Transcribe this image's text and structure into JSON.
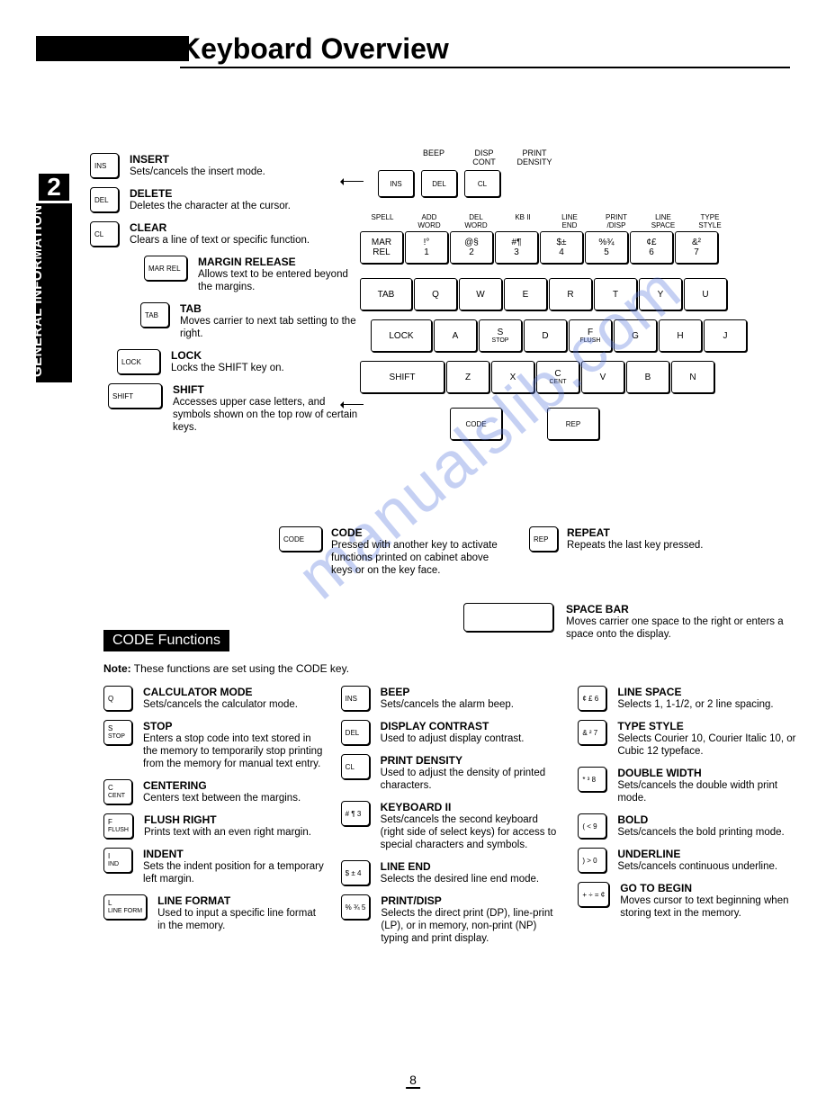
{
  "title": "Keyboard Overview",
  "section_num": "2",
  "section_label": "GENERAL INFORMATION",
  "page_number": "8",
  "watermark": "manualslib.com",
  "left_keys": [
    {
      "cap": "INS",
      "name": "INSERT",
      "text": "Sets/cancels the insert mode."
    },
    {
      "cap": "DEL",
      "name": "DELETE",
      "text": "Deletes the character at the cursor."
    },
    {
      "cap": "CL",
      "name": "CLEAR",
      "text": "Clears a line of text or specific function."
    },
    {
      "cap": "MAR REL",
      "name": "MARGIN RELEASE",
      "text": "Allows text to be entered beyond the margins.",
      "indent": 60,
      "wider": true
    },
    {
      "cap": "TAB",
      "name": "TAB",
      "text": "Moves carrier to next tab setting to the right.",
      "indent": 56
    },
    {
      "cap": "LOCK",
      "name": "LOCK",
      "text": "Locks the SHIFT key on.",
      "indent": 30,
      "wider": true
    },
    {
      "cap": "SHIFT",
      "name": "SHIFT",
      "text": "Accesses upper case letters, and symbols shown on the top row of certain keys.",
      "indent": 20,
      "wide": true
    }
  ],
  "kbd": {
    "top_labels": [
      "BEEP",
      "DISP\nCONT",
      "PRINT\nDENSITY"
    ],
    "top_keys": [
      "INS",
      "DEL",
      "CL"
    ],
    "num_labels": [
      "SPELL",
      "ADD\nWORD",
      "DEL\nWORD",
      "KB II",
      "LINE\nEND",
      "PRINT\n/DISP",
      "LINE\nSPACE",
      "TYPE\nSTYLE"
    ],
    "num_row": [
      {
        "t": "MAR",
        "b": "REL"
      },
      {
        "l": "!",
        "r": "°",
        "b": "1"
      },
      {
        "l": "@",
        "r": "§",
        "b": "2"
      },
      {
        "l": "#",
        "r": "¶",
        "b": "3"
      },
      {
        "l": "$",
        "r": "±",
        "b": "4"
      },
      {
        "l": "%",
        "r": "¾",
        "b": "5"
      },
      {
        "l": "¢",
        "r": "£",
        "b": "6"
      },
      {
        "l": "&",
        "r": "²",
        "b": "7"
      }
    ],
    "row_q": [
      "TAB",
      "Q",
      "W",
      "E",
      "R",
      "T",
      "Y",
      "U"
    ],
    "row_a": [
      {
        "t": "LOCK"
      },
      "A",
      {
        "t": "S",
        "b": "STOP"
      },
      "D",
      {
        "t": "F",
        "b": "FLUSH"
      },
      "G",
      "H",
      "J"
    ],
    "row_z": [
      "SHIFT",
      "Z",
      "X",
      {
        "t": "C",
        "b": "CENT"
      },
      "V",
      "B",
      "N"
    ],
    "row_bot": [
      "CODE",
      "REP"
    ]
  },
  "mid": {
    "code": {
      "cap": "CODE",
      "name": "CODE",
      "text": "Pressed with another key to activate functions printed on cabinet above keys or on the key face."
    },
    "repeat": {
      "cap": "REP",
      "name": "REPEAT",
      "text": "Repeats the last key pressed."
    },
    "space": {
      "name": "SPACE BAR",
      "text": "Moves carrier one space to the right or enters a space onto the display."
    }
  },
  "code_hdr": "CODE Functions",
  "note_label": "Note:",
  "note_text": "These functions are set using the CODE key.",
  "code_cols": [
    [
      {
        "cap": "Q",
        "name": "CALCULATOR MODE",
        "text": "Sets/cancels the calculator mode."
      },
      {
        "cap": "S",
        "sub": "STOP",
        "name": "STOP",
        "text": "Enters a stop code into text stored in the memory to temporarily stop printing from the memory for manual text entry."
      },
      {
        "cap": "C",
        "sub": "CENT",
        "name": "CENTERING",
        "text": "Centers text between the margins."
      },
      {
        "cap": "F",
        "sub": "FLUSH",
        "name": "FLUSH RIGHT",
        "text": "Prints text with an even right margin."
      },
      {
        "cap": "I",
        "sub": "IND",
        "name": "INDENT",
        "text": "Sets the indent position for a temporary left margin."
      },
      {
        "cap": "L",
        "sub": "LINE FORM",
        "name": "LINE FORMAT",
        "text": "Used to input a specific line format in the memory."
      }
    ],
    [
      {
        "cap": "INS",
        "name": "BEEP",
        "text": "Sets/cancels the alarm beep."
      },
      {
        "cap": "DEL",
        "name": "DISPLAY CONTRAST",
        "text": "Used to adjust display contrast."
      },
      {
        "cap": "CL",
        "name": "PRINT DENSITY",
        "text": "Used to adjust the density of printed characters."
      },
      {
        "cap": "# ¶ 3",
        "name": "KEYBOARD II",
        "text": "Sets/cancels the second keyboard (right side of select keys) for access to special characters and symbols."
      },
      {
        "cap": "$ ± 4",
        "name": "LINE END",
        "text": "Selects the desired line end mode."
      },
      {
        "cap": "% ¾ 5",
        "name": "PRINT/DISP",
        "text": "Selects the direct print (DP), line-print (LP), or in memory, non-print (NP) typing and print display."
      }
    ],
    [
      {
        "cap": "¢ £ 6",
        "name": "LINE SPACE",
        "text": "Selects 1, 1-1/2, or 2 line spacing."
      },
      {
        "cap": "& ² 7",
        "name": "TYPE STYLE",
        "text": "Selects Courier 10, Courier Italic 10, or Cubic 12 typeface."
      },
      {
        "cap": "* ³ 8",
        "name": "DOUBLE WIDTH",
        "text": "Sets/cancels the double width print mode."
      },
      {
        "cap": "( < 9",
        "name": "BOLD",
        "text": "Sets/cancels the bold printing mode."
      },
      {
        "cap": ") > 0",
        "name": "UNDERLINE",
        "text": "Sets/cancels continuous underline."
      },
      {
        "cap": "+ ÷ = ¢",
        "name": "GO TO BEGIN",
        "text": "Moves cursor to text beginning when storing text in the memory."
      }
    ]
  ]
}
